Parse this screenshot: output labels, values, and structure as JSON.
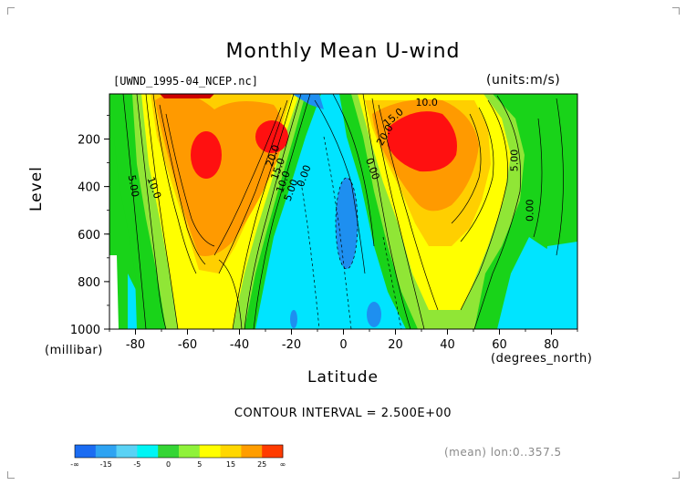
{
  "chart_data": {
    "type": "heatmap",
    "title": "Monthly Mean U-wind",
    "file_label": "[UWND_1995-04_NCEP.nc]",
    "units_label": "(units:m/s)",
    "ylabel": "Level",
    "ylabel_unit": "(millibar)",
    "xlabel": "Latitude",
    "xlabel_unit": "(degrees_north)",
    "contour_interval": "CONTOUR INTERVAL = 2.500E+00",
    "mean_label": "(mean) lon:0..357.5",
    "xlim": [
      -90,
      90
    ],
    "ylim": [
      1000,
      10
    ],
    "x_ticks": [
      -80,
      -60,
      -40,
      -20,
      0,
      20,
      40,
      60,
      80
    ],
    "y_ticks": [
      200,
      400,
      600,
      800,
      1000
    ],
    "contour_labels": [
      {
        "text": "5.00",
        "x": -82,
        "y": 400,
        "angle": 80
      },
      {
        "text": "10.0",
        "x": -74,
        "y": 410,
        "angle": 70
      },
      {
        "text": "20.0",
        "x": -26,
        "y": 275,
        "angle": -70
      },
      {
        "text": "15.0",
        "x": -24,
        "y": 330,
        "angle": -70
      },
      {
        "text": "10.0",
        "x": -22,
        "y": 385,
        "angle": -70
      },
      {
        "text": "5.00",
        "x": -19,
        "y": 420,
        "angle": -70
      },
      {
        "text": "0.00",
        "x": -14,
        "y": 360,
        "angle": -70
      },
      {
        "text": "15.0",
        "x": 20,
        "y": 120,
        "angle": -40
      },
      {
        "text": "10.0",
        "x": 32,
        "y": 60,
        "angle": 0
      },
      {
        "text": "20.0",
        "x": 17,
        "y": 190,
        "angle": -60
      },
      {
        "text": "0.00",
        "x": 10,
        "y": 330,
        "angle": 70
      },
      {
        "text": "5.00",
        "x": 67,
        "y": 290,
        "angle": -90
      },
      {
        "text": "0.00",
        "x": 73,
        "y": 500,
        "angle": -90
      }
    ],
    "colorbar": {
      "labels": [
        "-∞",
        "-15",
        "-5",
        "0",
        "5",
        "15",
        "25",
        "∞"
      ],
      "colors": [
        "#1b6cf2",
        "#2ea3f2",
        "#5ad2f5",
        "#00f5f5",
        "#35d535",
        "#8ff23a",
        "#ffff00",
        "#ffd700",
        "#ff9d00",
        "#ff3b00"
      ]
    },
    "level_colors": {
      "negative": "#00e4ff",
      "negative_strong": "#1e8ff0",
      "zero_to_5": "#19d319",
      "5_to_10": "#90e636",
      "10_to_15": "#ffff00",
      "15_to_20": "#ffcf00",
      "20_to_25": "#ff9a00",
      "above_25": "#ff1010"
    }
  }
}
